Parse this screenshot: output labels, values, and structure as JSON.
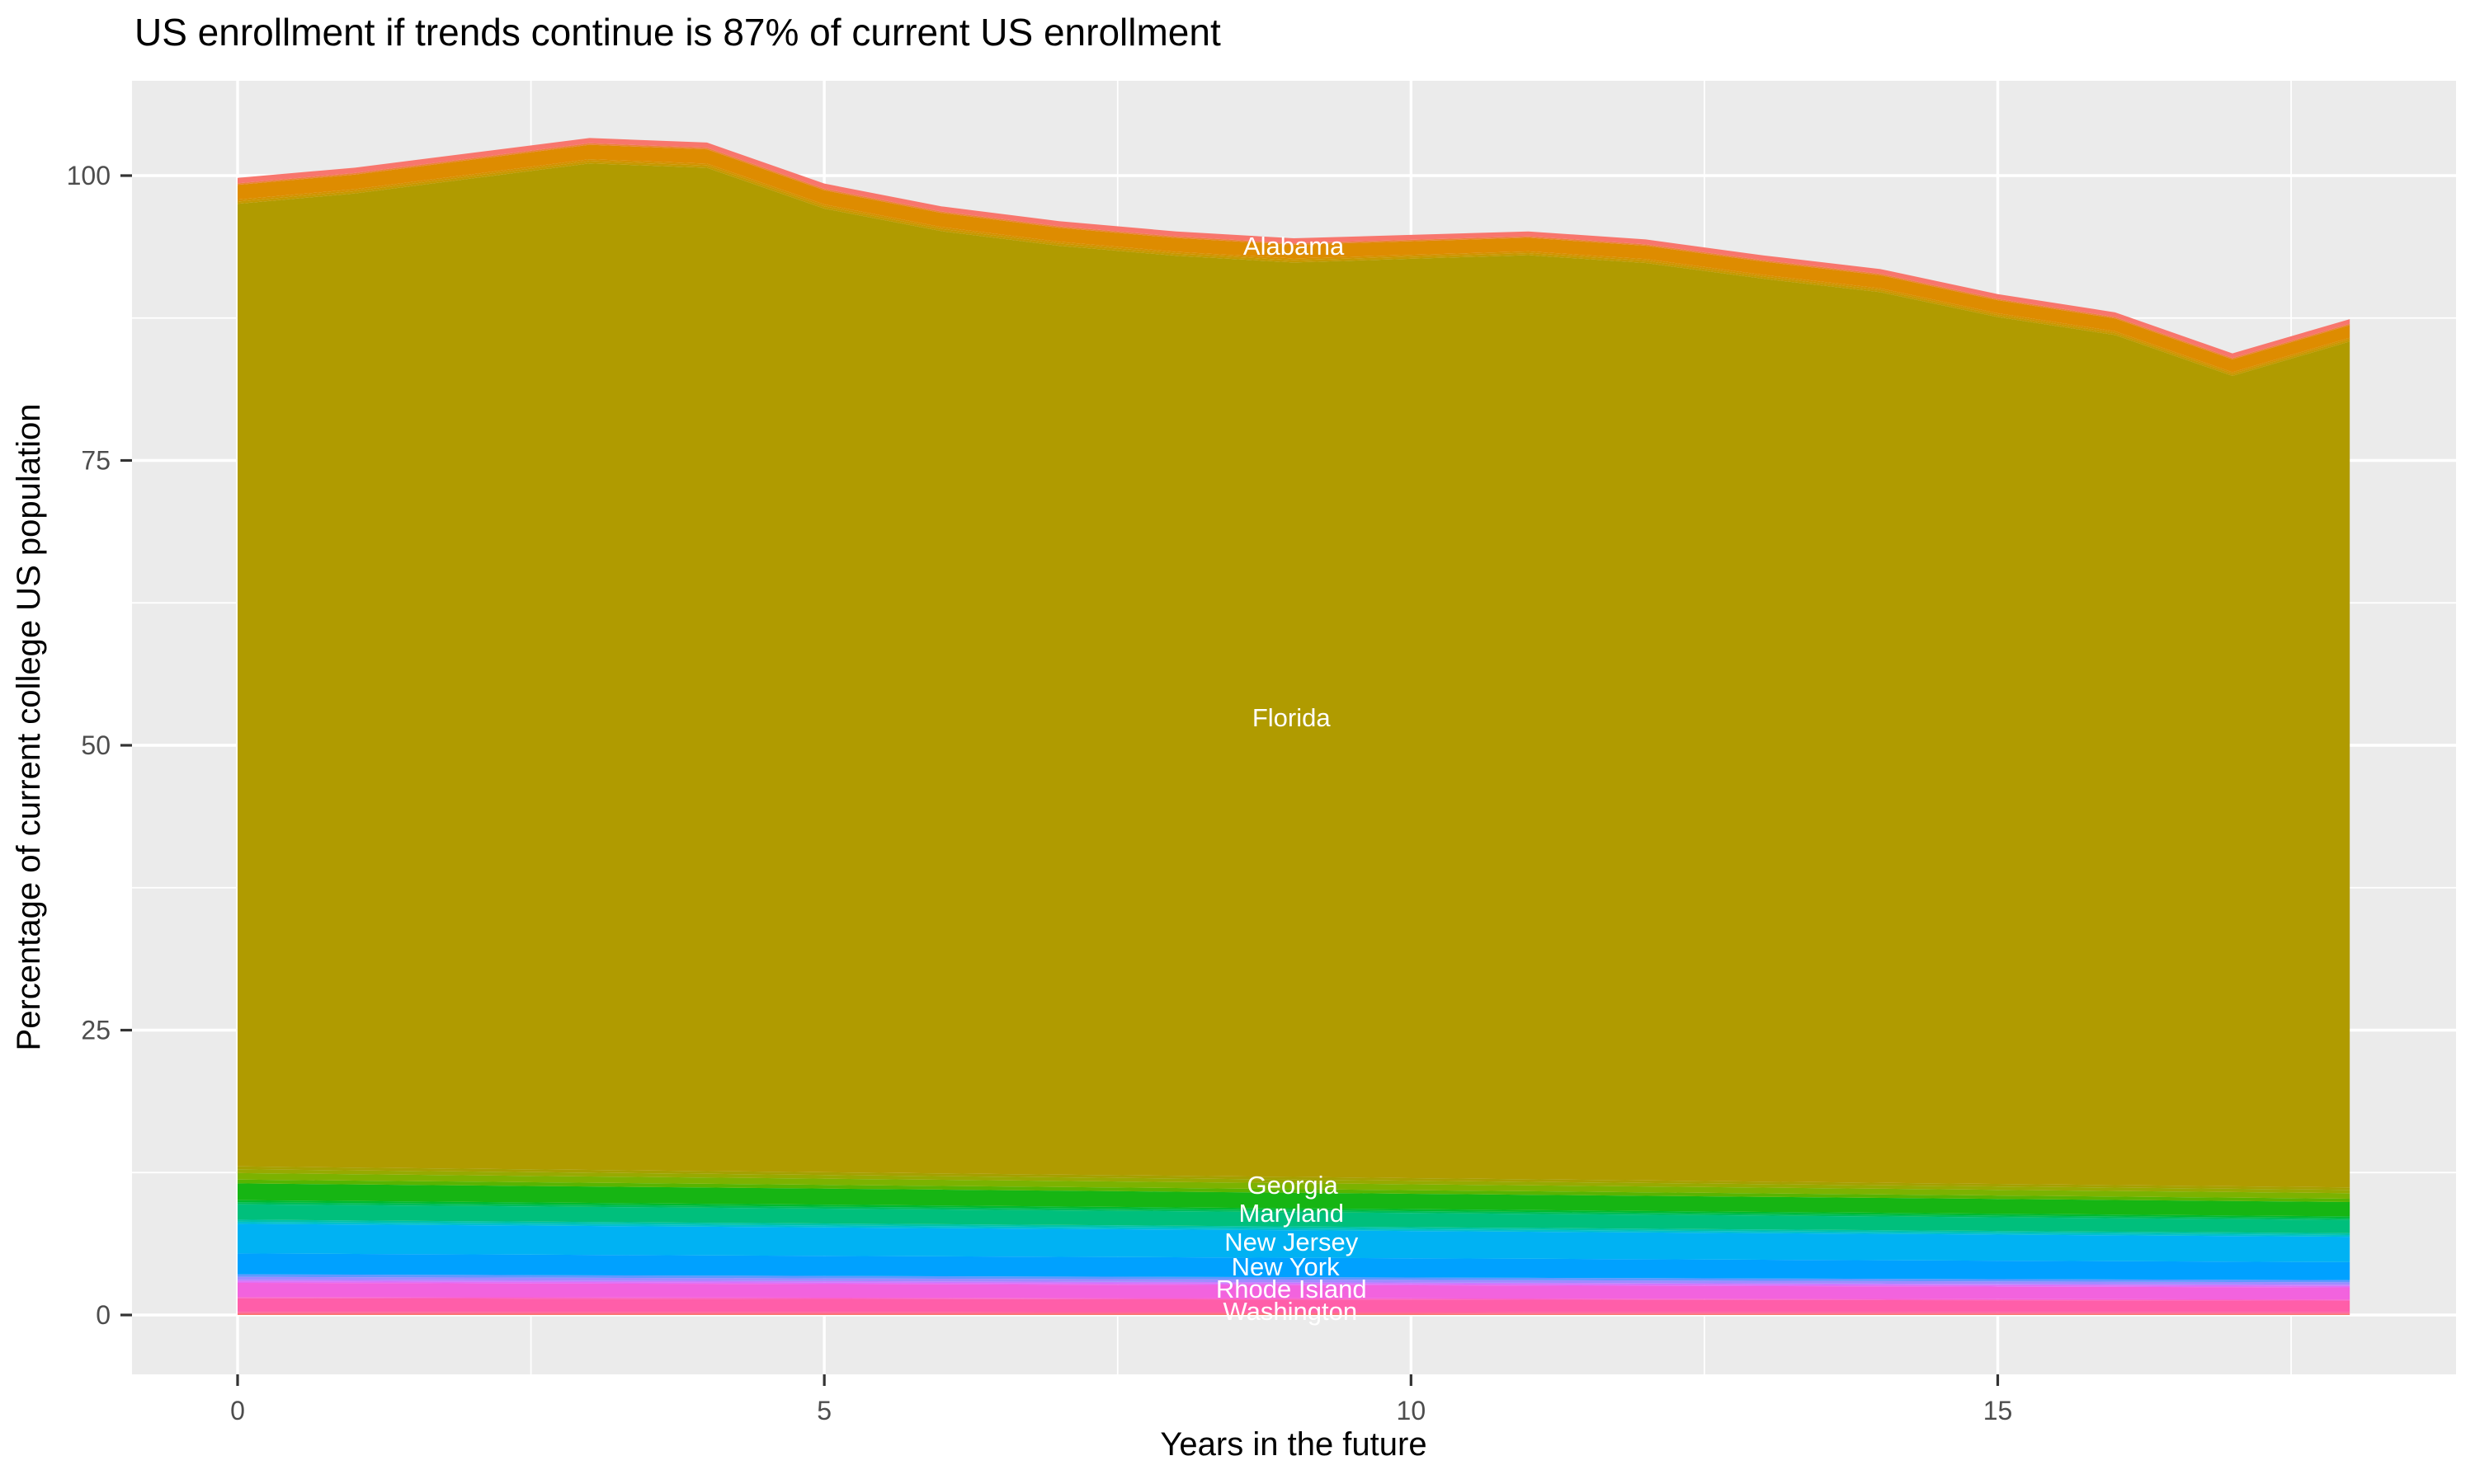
{
  "chart_data": {
    "type": "area",
    "title": "US enrollment if trends continue is 87% of current US enrollment",
    "xlabel": "Years in the future",
    "ylabel": "Percentage of current college US population",
    "legend": "none (labels drawn inside areas)",
    "grid": "on",
    "x": [
      0,
      1,
      2,
      3,
      4,
      5,
      6,
      7,
      8,
      9,
      10,
      11,
      12,
      13,
      14,
      15,
      16,
      17,
      18
    ],
    "stack_top": [
      99.8,
      100.7,
      102.0,
      103.3,
      102.9,
      99.3,
      97.3,
      96.0,
      95.1,
      94.5,
      94.8,
      95.1,
      94.4,
      93.0,
      91.8,
      89.6,
      88.0,
      84.4,
      87.4
    ],
    "xlim": [
      -0.9,
      18.9
    ],
    "ylim": [
      -5.2,
      108.4
    ],
    "x_ticks": [
      {
        "label": "0",
        "value": 0
      },
      {
        "label": "5",
        "value": 5
      },
      {
        "label": "10",
        "value": 10
      },
      {
        "label": "15",
        "value": 15
      }
    ],
    "y_ticks": [
      {
        "label": "0",
        "value": 0
      },
      {
        "label": "25",
        "value": 25
      },
      {
        "label": "50",
        "value": 50
      },
      {
        "label": "75",
        "value": 75
      },
      {
        "label": "100",
        "value": 100
      }
    ],
    "x_minor": [
      2.5,
      7.5,
      12.5,
      17.5
    ],
    "y_minor": [
      12.5,
      37.5,
      62.5,
      87.5
    ],
    "band_scale": {
      "start": 1.13,
      "end": 0.97
    },
    "bands": [
      {
        "name": "band-bottom-hairline-1",
        "color": "#F8766D",
        "thickness": 0.1
      },
      {
        "name": "band-bottom-hairline-2",
        "color": "#FF6A98",
        "thickness": 0.14
      },
      {
        "name": "band-washington",
        "color": "#FF5EA9",
        "thickness": 1.06
      },
      {
        "name": "band-hairline-3",
        "color": "#FC61C9",
        "thickness": 0.1
      },
      {
        "name": "band-rhode-island",
        "color": "#F263DE",
        "thickness": 1.1
      },
      {
        "name": "band-hairline-4",
        "color": "#E26EF7",
        "thickness": 0.12
      },
      {
        "name": "band-hairline-5",
        "color": "#C77CFF",
        "thickness": 0.12
      },
      {
        "name": "band-hairline-6",
        "color": "#9E8CFF",
        "thickness": 0.22
      },
      {
        "name": "band-hairline-7",
        "color": "#6097FF",
        "thickness": 0.2
      },
      {
        "name": "band-new-york",
        "color": "#00A1FF",
        "thickness": 1.62
      },
      {
        "name": "band-new-jersey",
        "color": "#00B2F3",
        "thickness": 2.3
      },
      {
        "name": "band-hairline-8",
        "color": "#00C0CE",
        "thickness": 0.16
      },
      {
        "name": "band-hairline-9",
        "color": "#00C2A9",
        "thickness": 0.16
      },
      {
        "name": "band-maryland",
        "color": "#00BF7C",
        "thickness": 1.2
      },
      {
        "name": "band-hairline-10",
        "color": "#00BC59",
        "thickness": 0.16
      },
      {
        "name": "band-hairline-11",
        "color": "#00B92F",
        "thickness": 0.16
      },
      {
        "name": "band-georgia",
        "color": "#16B513",
        "thickness": 1.3
      },
      {
        "name": "band-hairline-12",
        "color": "#58B400",
        "thickness": 0.3
      },
      {
        "name": "band-hairline-13",
        "color": "#7CB200",
        "thickness": 0.5
      },
      {
        "name": "band-hairline-14",
        "color": "#98A900",
        "thickness": 0.3
      },
      {
        "name": "band-hairline-15",
        "color": "#A5A000",
        "thickness": 0.22
      },
      {
        "name": "band-florida",
        "color": "#B09B00",
        "thickness": "auto"
      },
      {
        "name": "band-hairline-16",
        "color": "#C69900",
        "thickness": 0.18
      },
      {
        "name": "band-hairline-17",
        "color": "#D39200",
        "thickness": 0.15
      },
      {
        "name": "band-orange-unlabeled",
        "color": "#DE8C00",
        "thickness": 1.15
      },
      {
        "name": "band-hairline-18",
        "color": "#EC8239",
        "thickness": 0.12
      },
      {
        "name": "band-alabama",
        "color": "#F8766D",
        "thickness": 0.42
      }
    ],
    "area_labels": [
      {
        "text": "Alabama",
        "x": 9.0,
        "y": 93.85
      },
      {
        "text": "Florida",
        "x": 8.98,
        "y": 52.46
      },
      {
        "text": "Georgia",
        "x": 8.99,
        "y": 11.43
      },
      {
        "text": "Maryland",
        "x": 8.98,
        "y": 8.97
      },
      {
        "text": "New Jersey",
        "x": 8.98,
        "y": 6.44
      },
      {
        "text": "New York",
        "x": 8.93,
        "y": 4.27
      },
      {
        "text": "Rhode Island",
        "x": 8.98,
        "y": 2.32
      },
      {
        "text": "Washington",
        "x": 8.97,
        "y": 0.36
      }
    ],
    "style": {
      "panel_bg": "#EBEBEB",
      "grid_color": "#FFFFFF",
      "tick_color": "#333333",
      "tick_label_color": "#4D4D4D",
      "area_label_color": "#FFFFFF",
      "title_color": "#000000"
    }
  }
}
